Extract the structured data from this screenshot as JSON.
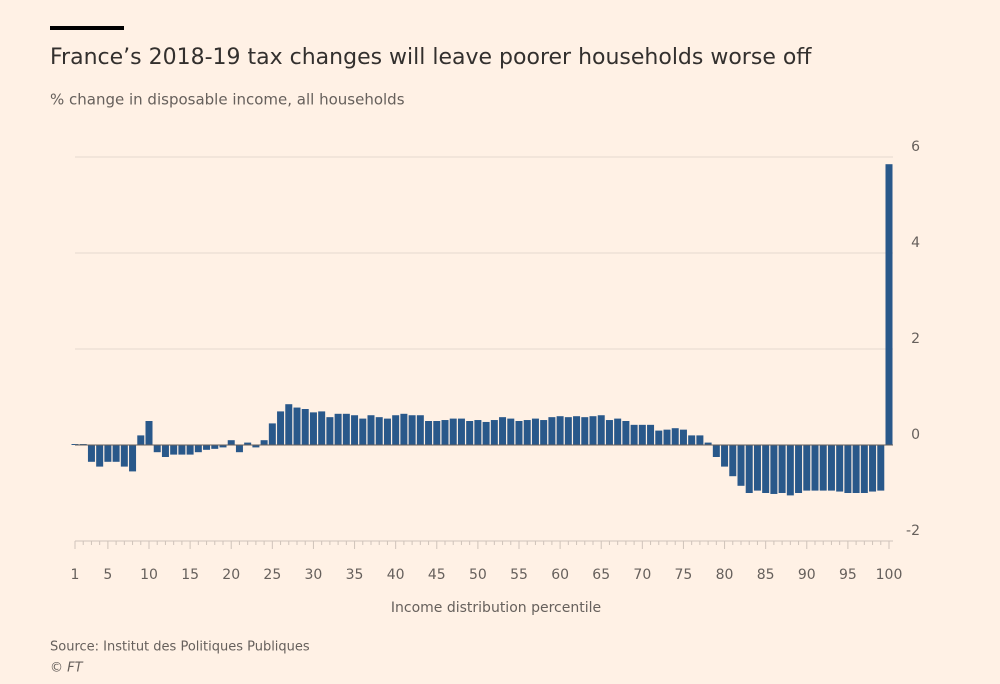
{
  "chart_data": {
    "type": "bar",
    "title": "France’s 2018-19 tax changes will leave poorer households worse off",
    "subtitle": "% change in disposable income, all households",
    "xlabel": "Income distribution percentile",
    "source": "Source: Institut des Politiques Publiques",
    "credit": "© FT",
    "color": "#29588a",
    "categories": [
      1,
      null,
      null,
      null,
      5,
      null,
      null,
      null,
      null,
      10,
      null,
      null,
      null,
      null,
      15,
      null,
      null,
      null,
      null,
      20,
      null,
      null,
      null,
      null,
      25,
      null,
      null,
      null,
      null,
      30,
      null,
      null,
      null,
      null,
      35,
      null,
      null,
      null,
      null,
      40,
      null,
      null,
      null,
      null,
      45,
      null,
      null,
      null,
      null,
      50,
      null,
      null,
      null,
      null,
      55,
      null,
      null,
      null,
      null,
      60,
      null,
      null,
      null,
      null,
      65,
      null,
      null,
      null,
      null,
      70,
      null,
      null,
      null,
      null,
      75,
      null,
      null,
      null,
      null,
      80,
      null,
      null,
      null,
      null,
      85,
      null,
      null,
      null,
      null,
      90,
      null,
      null,
      null,
      null,
      95,
      null,
      null,
      null,
      null,
      100
    ],
    "values": [
      0.02,
      0.02,
      -0.35,
      -0.45,
      -0.35,
      -0.35,
      -0.45,
      -0.55,
      0.2,
      0.5,
      -0.15,
      -0.25,
      -0.2,
      -0.2,
      -0.2,
      -0.15,
      -0.1,
      -0.08,
      -0.05,
      0.1,
      -0.15,
      0.05,
      -0.05,
      0.1,
      0.45,
      0.7,
      0.85,
      0.78,
      0.75,
      0.68,
      0.7,
      0.58,
      0.65,
      0.65,
      0.62,
      0.55,
      0.62,
      0.58,
      0.55,
      0.62,
      0.65,
      0.62,
      0.62,
      0.5,
      0.5,
      0.52,
      0.55,
      0.55,
      0.5,
      0.52,
      0.48,
      0.52,
      0.58,
      0.55,
      0.5,
      0.52,
      0.55,
      0.52,
      0.58,
      0.6,
      0.58,
      0.6,
      0.58,
      0.6,
      0.62,
      0.52,
      0.55,
      0.5,
      0.42,
      0.42,
      0.42,
      0.3,
      0.32,
      0.35,
      0.32,
      0.2,
      0.2,
      0.05,
      -0.25,
      -0.45,
      -0.65,
      -0.85,
      -1.0,
      -0.95,
      -1.0,
      -1.02,
      -1.0,
      -1.05,
      -1.0,
      -0.95,
      -0.95,
      -0.95,
      -0.95,
      -0.97,
      -1.0,
      -1.0,
      -1.0,
      -0.97,
      -0.95,
      5.85
    ],
    "ylim": [
      -2,
      6
    ],
    "yticks": [
      -2,
      0,
      2,
      4,
      6
    ],
    "grid": true
  }
}
